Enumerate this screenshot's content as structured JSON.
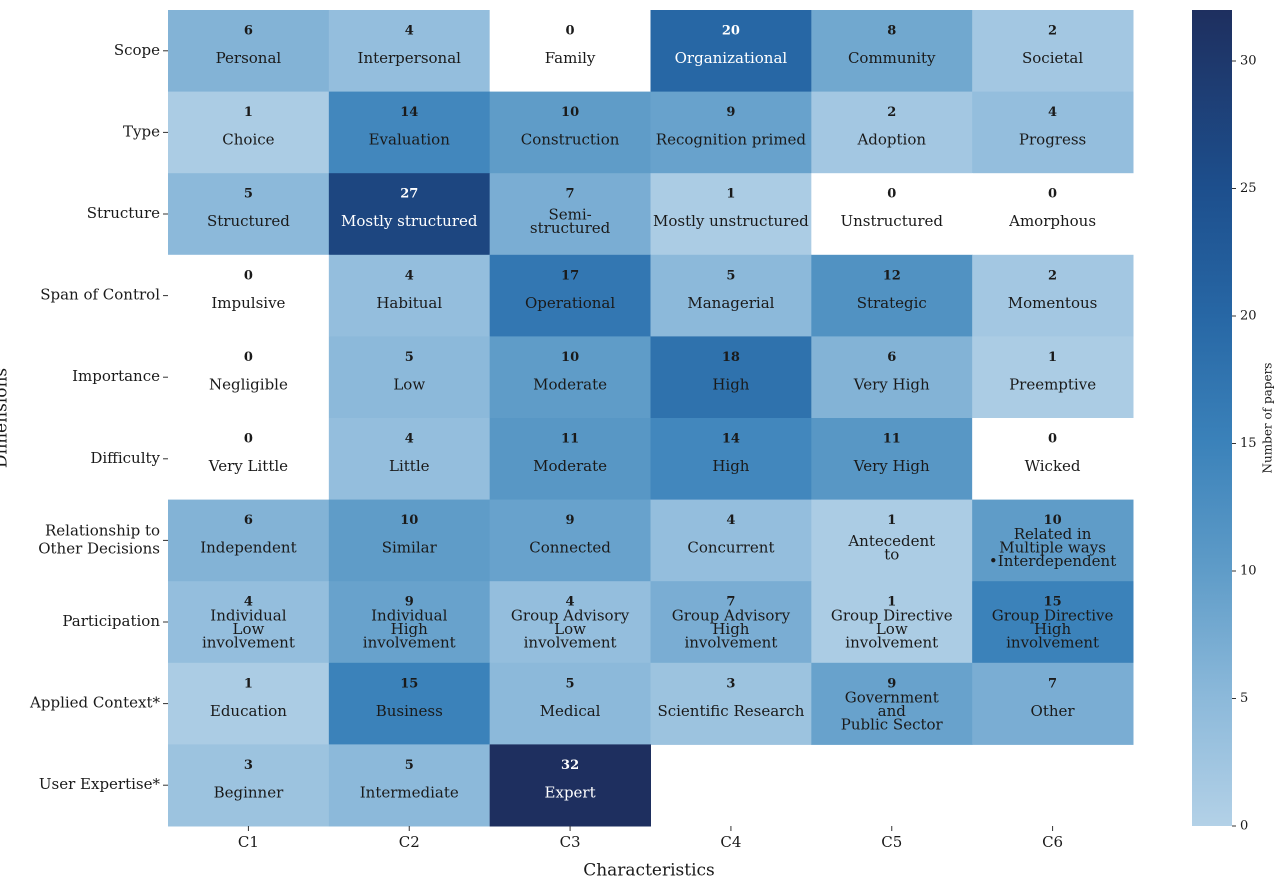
{
  "chart_data": {
    "type": "heatmap",
    "x_label": "Characteristics",
    "y_label": "Dimensions",
    "colorbar_label": "Number of papers",
    "x_categories": [
      "C1",
      "C2",
      "C3",
      "C4",
      "C5",
      "C6"
    ],
    "y_categories": [
      "Scope",
      "Type",
      "Structure",
      "Span of Control",
      "Importance",
      "Difficulty",
      "Relationship to\nOther Decisions",
      "Participation",
      "Applied Context*",
      "User Expertise*"
    ],
    "values": [
      [
        6,
        4,
        0,
        20,
        8,
        2
      ],
      [
        1,
        14,
        10,
        9,
        2,
        4
      ],
      [
        5,
        27,
        7,
        1,
        0,
        0
      ],
      [
        0,
        4,
        17,
        5,
        12,
        2
      ],
      [
        0,
        5,
        10,
        18,
        6,
        1
      ],
      [
        0,
        4,
        11,
        14,
        11,
        0
      ],
      [
        6,
        10,
        9,
        4,
        1,
        10
      ],
      [
        4,
        9,
        4,
        7,
        1,
        15
      ],
      [
        1,
        15,
        5,
        3,
        9,
        7
      ],
      [
        3,
        5,
        32,
        null,
        null,
        null
      ]
    ],
    "cell_labels": [
      [
        "Personal",
        "Interpersonal",
        "Family",
        "Organizational",
        "Community",
        "Societal"
      ],
      [
        "Choice",
        "Evaluation",
        "Construction",
        "Recognition primed",
        "Adoption",
        "Progress"
      ],
      [
        "Structured",
        "Mostly structured",
        "Semi-\nstructured",
        "Mostly unstructured",
        "Unstructured",
        "Amorphous"
      ],
      [
        "Impulsive",
        "Habitual",
        "Operational",
        "Managerial",
        "Strategic",
        "Momentous"
      ],
      [
        "Negligible",
        "Low",
        "Moderate",
        "High",
        "Very High",
        "Preemptive"
      ],
      [
        "Very Little",
        "Little",
        "Moderate",
        "High",
        "Very High",
        "Wicked"
      ],
      [
        "Independent",
        "Similar",
        "Connected",
        "Concurrent",
        "Antecedent\nto",
        "Related in\nMultiple ways\n•Interdependent"
      ],
      [
        "Individual\nLow\ninvolvement",
        "Individual\nHigh\ninvolvement",
        "Group Advisory\nLow\ninvolvement",
        "Group Advisory\nHigh\ninvolvement",
        "Group Directive\nLow\ninvolvement",
        "Group Directive\nHigh\ninvolvement"
      ],
      [
        "Education",
        "Business",
        "Medical",
        "Scientific Research",
        "Government\nand\nPublic Sector",
        "Other"
      ],
      [
        "Beginner",
        "Intermediate",
        "Expert",
        null,
        null,
        null
      ]
    ],
    "clim": [
      0,
      32
    ],
    "cticks": [
      0,
      5,
      10,
      15,
      20,
      25,
      30
    ],
    "colormap": [
      [
        0,
        "#b3d1e7"
      ],
      [
        5,
        "#8cb9da"
      ],
      [
        10,
        "#5f9cc8"
      ],
      [
        15,
        "#3b82ba"
      ],
      [
        20,
        "#2767a5"
      ],
      [
        25,
        "#1d4f8d"
      ],
      [
        32,
        "#1e2f5f"
      ]
    ],
    "zero_color": "#ffffff"
  }
}
